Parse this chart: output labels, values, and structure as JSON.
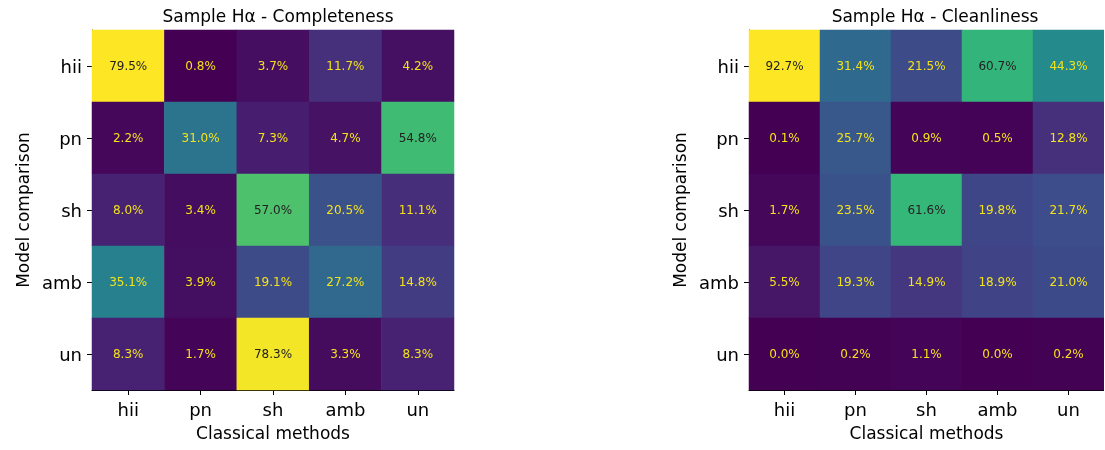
{
  "chart_data": [
    {
      "type": "heatmap",
      "title": "Sample Hα - Completeness",
      "xlabel": "Classical methods",
      "ylabel": "Model comparison",
      "categories": [
        "hii",
        "pn",
        "sh",
        "amb",
        "un"
      ],
      "y_categories": [
        "hii",
        "pn",
        "sh",
        "amb",
        "un"
      ],
      "cells": [
        [
          79.5,
          0.8,
          3.7,
          11.7,
          4.2
        ],
        [
          2.2,
          31.0,
          7.3,
          4.7,
          54.8
        ],
        [
          8.0,
          3.4,
          57.0,
          20.5,
          11.1
        ],
        [
          35.1,
          3.9,
          19.1,
          27.2,
          14.8
        ],
        [
          8.3,
          1.7,
          78.3,
          3.3,
          8.3
        ]
      ],
      "cell_labels": [
        [
          "79.5%",
          "0.8%",
          "3.7%",
          "11.7%",
          "4.2%"
        ],
        [
          "2.2%",
          "31.0%",
          "7.3%",
          "4.7%",
          "54.8%"
        ],
        [
          "8.0%",
          "3.4%",
          "57.0%",
          "20.5%",
          "11.1%"
        ],
        [
          "35.1%",
          "3.9%",
          "19.1%",
          "27.2%",
          "14.8%"
        ],
        [
          "8.3%",
          "1.7%",
          "78.3%",
          "3.3%",
          "8.3%"
        ]
      ]
    },
    {
      "type": "heatmap",
      "title": "Sample Hα - Cleanliness",
      "xlabel": "Classical methods",
      "ylabel": "Model comparison",
      "categories": [
        "hii",
        "pn",
        "sh",
        "amb",
        "un"
      ],
      "y_categories": [
        "hii",
        "pn",
        "sh",
        "amb",
        "un"
      ],
      "cells": [
        [
          92.7,
          31.4,
          21.5,
          60.7,
          44.3
        ],
        [
          0.1,
          25.7,
          0.9,
          0.5,
          12.8
        ],
        [
          1.7,
          23.5,
          61.6,
          19.8,
          21.7
        ],
        [
          5.5,
          19.3,
          14.9,
          18.9,
          21.0
        ],
        [
          0.0,
          0.2,
          1.1,
          0.0,
          0.2
        ]
      ],
      "cell_labels": [
        [
          "92.7%",
          "31.4%",
          "21.5%",
          "60.7%",
          "44.3%"
        ],
        [
          "0.1%",
          "25.7%",
          "0.9%",
          "0.5%",
          "12.8%"
        ],
        [
          "1.7%",
          "23.5%",
          "61.6%",
          "19.8%",
          "21.7%"
        ],
        [
          "5.5%",
          "19.3%",
          "14.9%",
          "18.9%",
          "21.0%"
        ],
        [
          "0.0%",
          "0.2%",
          "1.1%",
          "0.0%",
          "0.2%"
        ]
      ]
    }
  ]
}
